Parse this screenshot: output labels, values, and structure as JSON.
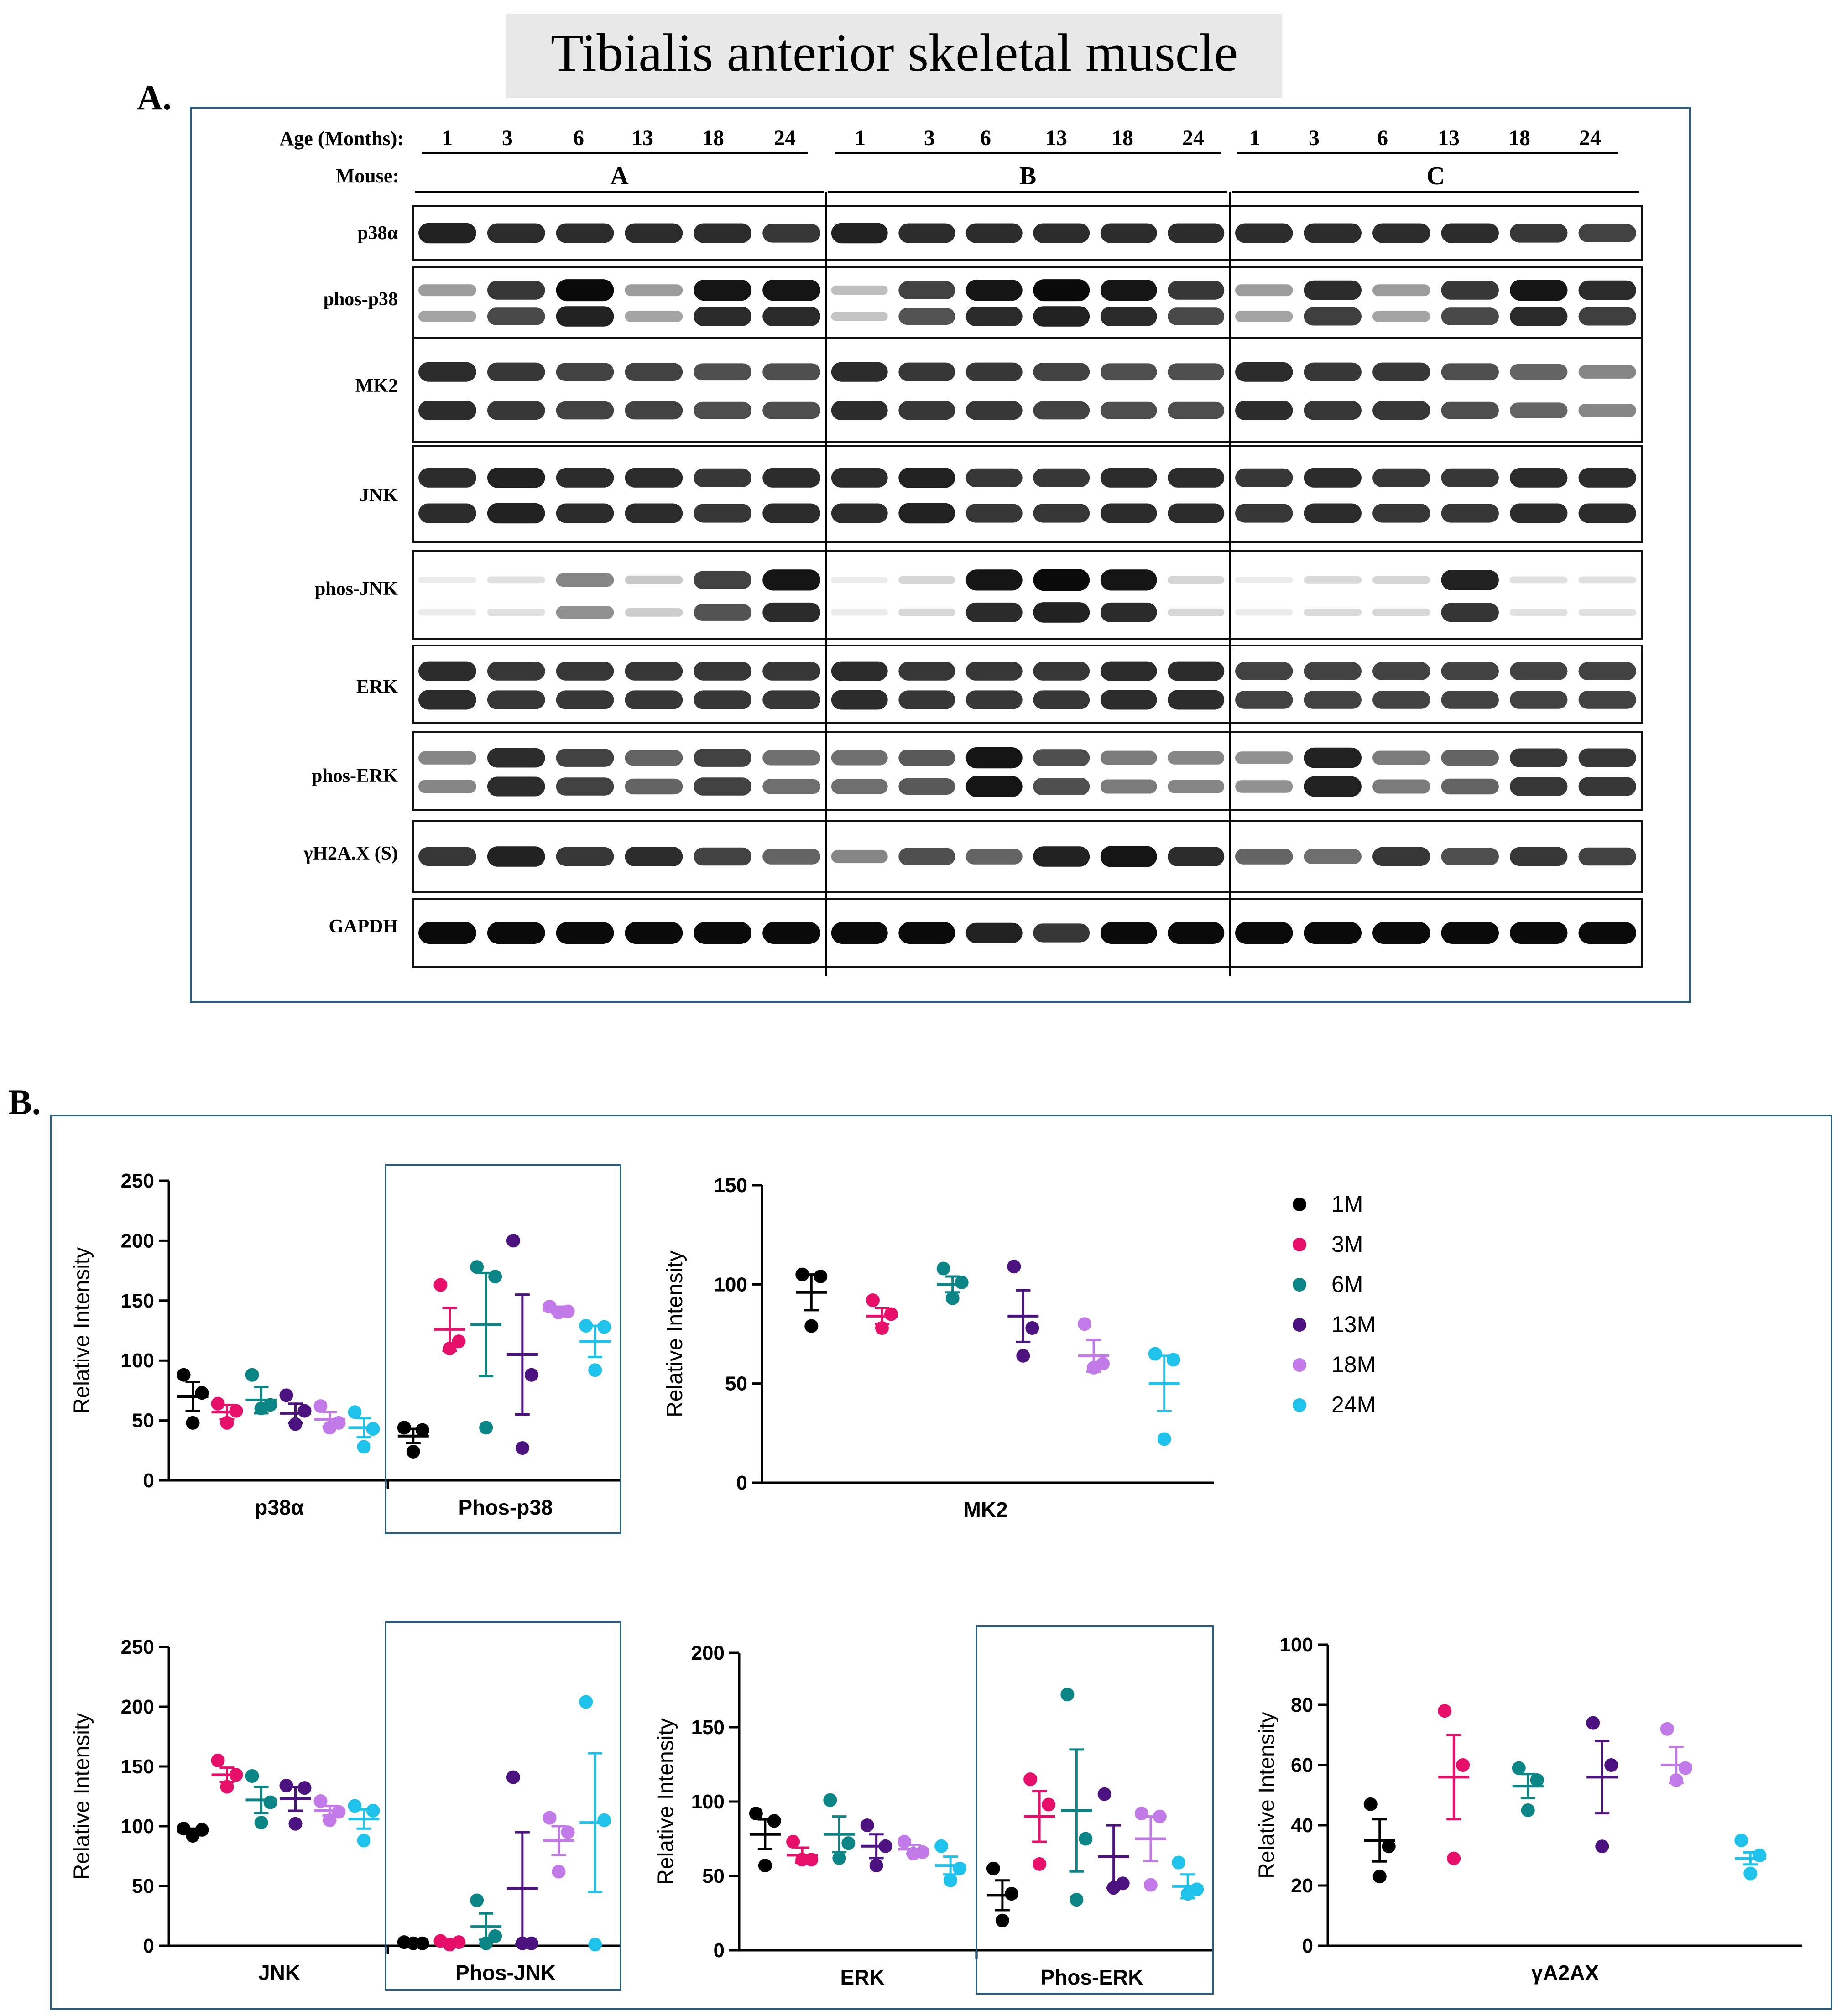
{
  "figure": {
    "title": "Tibialis anterior skeletal muscle",
    "panel_a_label": "A.",
    "panel_b_label": "B."
  },
  "blot": {
    "age_header": "Age (Months):",
    "mouse_header": "Mouse:",
    "ages": [
      "1",
      "3",
      "6",
      "13",
      "18",
      "24"
    ],
    "mice": [
      "A",
      "B",
      "C"
    ],
    "rows": [
      {
        "label": "p38α",
        "bands": 1,
        "intensity": {
          "A": [
            0.9,
            0.85,
            0.85,
            0.85,
            0.85,
            0.8
          ],
          "B": [
            0.9,
            0.85,
            0.85,
            0.85,
            0.85,
            0.85
          ],
          "C": [
            0.85,
            0.85,
            0.85,
            0.85,
            0.8,
            0.75
          ]
        }
      },
      {
        "label": "phos-p38",
        "bands": 2,
        "intensity": {
          "A": [
            0.35,
            0.8,
            1.0,
            0.35,
            0.95,
            0.95
          ],
          "B": [
            0.2,
            0.75,
            0.95,
            1.0,
            0.95,
            0.8
          ],
          "C": [
            0.35,
            0.85,
            0.35,
            0.8,
            0.95,
            0.85
          ]
        }
      },
      {
        "label": "MK2",
        "bands": 2,
        "intensity": {
          "A": [
            0.85,
            0.8,
            0.75,
            0.75,
            0.7,
            0.7
          ],
          "B": [
            0.85,
            0.8,
            0.8,
            0.75,
            0.7,
            0.7
          ],
          "C": [
            0.85,
            0.8,
            0.8,
            0.7,
            0.6,
            0.45
          ]
        }
      },
      {
        "label": "JNK",
        "bands": 2,
        "intensity": {
          "A": [
            0.85,
            0.9,
            0.85,
            0.85,
            0.8,
            0.85
          ],
          "B": [
            0.85,
            0.9,
            0.8,
            0.8,
            0.85,
            0.85
          ],
          "C": [
            0.8,
            0.85,
            0.8,
            0.8,
            0.85,
            0.85
          ]
        }
      },
      {
        "label": "phos-JNK",
        "bands": 2,
        "intensity": {
          "A": [
            0.0,
            0.05,
            0.45,
            0.15,
            0.75,
            0.95
          ],
          "B": [
            0.0,
            0.1,
            0.95,
            1.0,
            0.95,
            0.1
          ],
          "C": [
            0.0,
            0.08,
            0.1,
            0.9,
            0.05,
            0.05
          ]
        }
      },
      {
        "label": "ERK",
        "bands": 2,
        "intensity": {
          "A": [
            0.85,
            0.8,
            0.8,
            0.8,
            0.8,
            0.8
          ],
          "B": [
            0.85,
            0.8,
            0.8,
            0.8,
            0.85,
            0.85
          ],
          "C": [
            0.75,
            0.75,
            0.75,
            0.75,
            0.75,
            0.75
          ]
        }
      },
      {
        "label": "phos-ERK",
        "bands": 2,
        "intensity": {
          "A": [
            0.45,
            0.85,
            0.75,
            0.6,
            0.75,
            0.55
          ],
          "B": [
            0.55,
            0.65,
            0.95,
            0.7,
            0.5,
            0.45
          ],
          "C": [
            0.4,
            0.9,
            0.5,
            0.6,
            0.8,
            0.8
          ]
        }
      },
      {
        "label": "γH2A.X (S)",
        "bands": 1,
        "intensity": {
          "A": [
            0.8,
            0.9,
            0.8,
            0.85,
            0.75,
            0.6
          ],
          "B": [
            0.45,
            0.7,
            0.6,
            0.9,
            0.95,
            0.85
          ],
          "C": [
            0.6,
            0.55,
            0.8,
            0.7,
            0.8,
            0.75
          ]
        }
      },
      {
        "label": "GAPDH",
        "bands": 1,
        "intensity": {
          "A": [
            1.0,
            1.0,
            1.0,
            1.0,
            1.0,
            1.0
          ],
          "B": [
            1.0,
            1.0,
            0.9,
            0.8,
            1.0,
            1.0
          ],
          "C": [
            1.0,
            1.0,
            1.0,
            1.0,
            1.0,
            1.0
          ]
        }
      }
    ]
  },
  "legend": {
    "items": [
      {
        "label": "1M",
        "color": "#000000"
      },
      {
        "label": "3M",
        "color": "#e6106a"
      },
      {
        "label": "6M",
        "color": "#0b8585"
      },
      {
        "label": "13M",
        "color": "#4c1280"
      },
      {
        "label": "18M",
        "color": "#c27ae8"
      },
      {
        "label": "24M",
        "color": "#1fc2ea"
      }
    ]
  },
  "chart_data": [
    {
      "type": "scatter",
      "ylabel": "Relative Intensity",
      "ylim": [
        0,
        250
      ],
      "yticks": [
        0,
        50,
        100,
        150,
        200,
        250
      ],
      "groups": [
        {
          "label": "p38α",
          "boxed": false,
          "series": [
            {
              "name": "1M",
              "mean": 70,
              "sem": 12,
              "points": [
                88,
                73,
                48
              ]
            },
            {
              "name": "3M",
              "mean": 57,
              "sem": 6,
              "points": [
                64,
                58,
                48
              ]
            },
            {
              "name": "6M",
              "mean": 67,
              "sem": 11,
              "points": [
                88,
                63,
                60
              ]
            },
            {
              "name": "13M",
              "mean": 56,
              "sem": 8,
              "points": [
                71,
                58,
                47
              ]
            },
            {
              "name": "18M",
              "mean": 51,
              "sem": 6,
              "points": [
                62,
                48,
                44
              ]
            },
            {
              "name": "24M",
              "mean": 44,
              "sem": 8,
              "points": [
                57,
                43,
                28
              ]
            }
          ]
        },
        {
          "label": "Phos-p38",
          "boxed": true,
          "series": [
            {
              "name": "1M",
              "mean": 37,
              "sem": 6,
              "points": [
                44,
                42,
                24
              ]
            },
            {
              "name": "3M",
              "mean": 126,
              "sem": 18,
              "points": [
                163,
                116,
                110
              ]
            },
            {
              "name": "6M",
              "mean": 130,
              "sem": 43,
              "points": [
                178,
                170,
                44
              ]
            },
            {
              "name": "13M",
              "mean": 105,
              "sem": 50,
              "points": [
                200,
                88,
                27
              ]
            },
            {
              "name": "18M",
              "mean": 142,
              "sem": 3,
              "points": [
                145,
                141,
                140
              ]
            },
            {
              "name": "24M",
              "mean": 116,
              "sem": 13,
              "points": [
                129,
                128,
                92
              ]
            }
          ]
        }
      ]
    },
    {
      "type": "scatter",
      "ylabel": "Relative Intensity",
      "ylim": [
        0,
        150
      ],
      "yticks": [
        0,
        50,
        100,
        150
      ],
      "groups": [
        {
          "label": "MK2",
          "boxed": false,
          "series": [
            {
              "name": "1M",
              "mean": 96,
              "sem": 9,
              "points": [
                105,
                104,
                79
              ]
            },
            {
              "name": "3M",
              "mean": 84,
              "sem": 4,
              "points": [
                92,
                85,
                78
              ]
            },
            {
              "name": "6M",
              "mean": 100,
              "sem": 4,
              "points": [
                108,
                101,
                93
              ]
            },
            {
              "name": "13M",
              "mean": 84,
              "sem": 13,
              "points": [
                109,
                78,
                64
              ]
            },
            {
              "name": "18M",
              "mean": 64,
              "sem": 8,
              "points": [
                80,
                60,
                58
              ]
            },
            {
              "name": "24M",
              "mean": 50,
              "sem": 14,
              "points": [
                65,
                62,
                22
              ]
            }
          ]
        }
      ]
    },
    {
      "type": "scatter",
      "ylabel": "Relative Intensity",
      "ylim": [
        0,
        250
      ],
      "yticks": [
        0,
        50,
        100,
        150,
        200,
        250
      ],
      "groups": [
        {
          "label": "JNK",
          "boxed": false,
          "series": [
            {
              "name": "1M",
              "mean": 96,
              "sem": 2,
              "points": [
                98,
                97,
                92
              ]
            },
            {
              "name": "3M",
              "mean": 143,
              "sem": 6,
              "points": [
                155,
                143,
                133
              ]
            },
            {
              "name": "6M",
              "mean": 122,
              "sem": 11,
              "points": [
                142,
                120,
                103
              ]
            },
            {
              "name": "13M",
              "mean": 123,
              "sem": 10,
              "points": [
                134,
                132,
                102
              ]
            },
            {
              "name": "18M",
              "mean": 113,
              "sem": 4,
              "points": [
                121,
                112,
                105
              ]
            },
            {
              "name": "24M",
              "mean": 106,
              "sem": 8,
              "points": [
                117,
                113,
                88
              ]
            }
          ]
        },
        {
          "label": "Phos-JNK",
          "boxed": true,
          "series": [
            {
              "name": "1M",
              "mean": 2,
              "sem": 0.5,
              "points": [
                3,
                2,
                2
              ]
            },
            {
              "name": "3M",
              "mean": 3,
              "sem": 1,
              "points": [
                4,
                3,
                1
              ]
            },
            {
              "name": "6M",
              "mean": 16,
              "sem": 11,
              "points": [
                38,
                8,
                2
              ]
            },
            {
              "name": "13M",
              "mean": 48,
              "sem": 47,
              "points": [
                141,
                2,
                2
              ]
            },
            {
              "name": "18M",
              "mean": 88,
              "sem": 12,
              "points": [
                107,
                95,
                62
              ]
            },
            {
              "name": "24M",
              "mean": 103,
              "sem": 58,
              "points": [
                204,
                105,
                1
              ]
            }
          ]
        }
      ]
    },
    {
      "type": "scatter",
      "ylabel": "Relative Intensity",
      "ylim": [
        0,
        200
      ],
      "yticks": [
        0,
        50,
        100,
        150,
        200
      ],
      "groups": [
        {
          "label": "ERK",
          "boxed": false,
          "series": [
            {
              "name": "1M",
              "mean": 78,
              "sem": 10,
              "points": [
                92,
                87,
                57
              ]
            },
            {
              "name": "3M",
              "mean": 64,
              "sem": 5,
              "points": [
                73,
                61,
                61
              ]
            },
            {
              "name": "6M",
              "mean": 78,
              "sem": 12,
              "points": [
                101,
                72,
                62
              ]
            },
            {
              "name": "13M",
              "mean": 70,
              "sem": 8,
              "points": [
                84,
                70,
                57
              ]
            },
            {
              "name": "18M",
              "mean": 68,
              "sem": 3,
              "points": [
                73,
                66,
                65
              ]
            },
            {
              "name": "24M",
              "mean": 57,
              "sem": 6,
              "points": [
                70,
                55,
                47
              ]
            }
          ]
        },
        {
          "label": "Phos-ERK",
          "boxed": true,
          "series": [
            {
              "name": "1M",
              "mean": 37,
              "sem": 10,
              "points": [
                55,
                38,
                20
              ]
            },
            {
              "name": "3M",
              "mean": 90,
              "sem": 17,
              "points": [
                115,
                98,
                58
              ]
            },
            {
              "name": "6M",
              "mean": 94,
              "sem": 41,
              "points": [
                172,
                75,
                34
              ]
            },
            {
              "name": "13M",
              "mean": 63,
              "sem": 21,
              "points": [
                105,
                45,
                42
              ]
            },
            {
              "name": "18M",
              "mean": 75,
              "sem": 15,
              "points": [
                92,
                90,
                44
              ]
            },
            {
              "name": "24M",
              "mean": 43,
              "sem": 8,
              "points": [
                59,
                41,
                38
              ]
            }
          ]
        }
      ]
    },
    {
      "type": "scatter",
      "ylabel": "Relative Intensity",
      "ylim": [
        0,
        100
      ],
      "yticks": [
        0,
        20,
        40,
        60,
        80,
        100
      ],
      "groups": [
        {
          "label": "γA2AX",
          "boxed": false,
          "series": [
            {
              "name": "1M",
              "mean": 35,
              "sem": 7,
              "points": [
                47,
                33,
                23
              ]
            },
            {
              "name": "3M",
              "mean": 56,
              "sem": 14,
              "points": [
                78,
                60,
                29
              ]
            },
            {
              "name": "6M",
              "mean": 53,
              "sem": 4,
              "points": [
                59,
                55,
                45
              ]
            },
            {
              "name": "13M",
              "mean": 56,
              "sem": 12,
              "points": [
                74,
                60,
                33
              ]
            },
            {
              "name": "18M",
              "mean": 60,
              "sem": 6,
              "points": [
                72,
                59,
                55
              ]
            },
            {
              "name": "24M",
              "mean": 29,
              "sem": 2,
              "points": [
                35,
                30,
                24
              ]
            }
          ]
        }
      ]
    }
  ]
}
